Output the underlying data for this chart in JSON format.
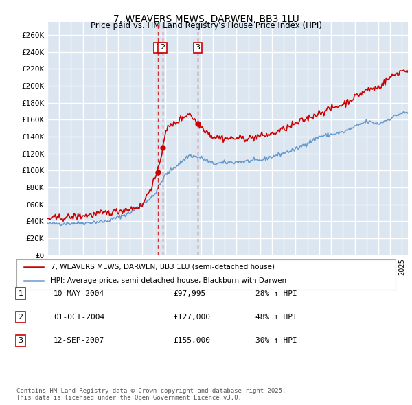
{
  "title": "7, WEAVERS MEWS, DARWEN, BB3 1LU",
  "subtitle": "Price paid vs. HM Land Registry's House Price Index (HPI)",
  "ylabel_ticks": [
    "£0",
    "£20K",
    "£40K",
    "£60K",
    "£80K",
    "£100K",
    "£120K",
    "£140K",
    "£160K",
    "£180K",
    "£200K",
    "£220K",
    "£240K",
    "£260K"
  ],
  "ytick_values": [
    0,
    20000,
    40000,
    60000,
    80000,
    100000,
    120000,
    140000,
    160000,
    180000,
    200000,
    220000,
    240000,
    260000
  ],
  "ylim": [
    0,
    275000
  ],
  "xlim_start": 1995.0,
  "xlim_end": 2025.5,
  "sale_points": [
    {
      "label": "1",
      "date_num": 2004.36,
      "price": 97995,
      "x_line": 2004.36
    },
    {
      "label": "2",
      "date_num": 2004.75,
      "price": 127000,
      "x_line": 2004.75
    },
    {
      "label": "3",
      "date_num": 2007.71,
      "price": 155000,
      "x_line": 2007.71
    }
  ],
  "legend_entries": [
    {
      "label": "7, WEAVERS MEWS, DARWEN, BB3 1LU (semi-detached house)",
      "color": "#cc0000",
      "lw": 1.5
    },
    {
      "label": "HPI: Average price, semi-detached house, Blackburn with Darwen",
      "color": "#6699cc",
      "lw": 1.5
    }
  ],
  "table_rows": [
    {
      "num": "1",
      "date": "10-MAY-2004",
      "price": "£97,995",
      "change": "28% ↑ HPI"
    },
    {
      "num": "2",
      "date": "01-OCT-2004",
      "price": "£127,000",
      "change": "48% ↑ HPI"
    },
    {
      "num": "3",
      "date": "12-SEP-2007",
      "price": "£155,000",
      "change": "30% ↑ HPI"
    }
  ],
  "footer": "Contains HM Land Registry data © Crown copyright and database right 2025.\nThis data is licensed under the Open Government Licence v3.0.",
  "background_color": "#dce6f1",
  "plot_bg_color": "#dce6f1",
  "grid_color": "#ffffff",
  "sale_box_color": "#cc0000",
  "dashed_line_color": "#cc0000"
}
